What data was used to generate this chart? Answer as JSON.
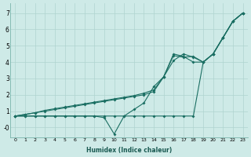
{
  "xlabel": "Humidex (Indice chaleur)",
  "bg_color": "#ceeae7",
  "grid_color": "#afd4d0",
  "line_color": "#1a6e62",
  "line1_x": [
    0,
    1,
    2,
    3,
    4,
    5,
    6,
    7,
    8,
    9,
    10,
    11,
    12,
    13,
    14,
    15,
    16,
    17,
    18,
    19,
    20,
    21,
    22,
    23
  ],
  "line1_y": [
    0.7,
    0.7,
    0.7,
    0.7,
    0.7,
    0.7,
    0.7,
    0.7,
    0.7,
    0.7,
    0.7,
    0.7,
    0.7,
    0.7,
    0.7,
    0.7,
    0.7,
    0.7,
    0.7,
    4.0,
    4.5,
    5.5,
    6.5,
    7.0
  ],
  "line2_x": [
    0,
    1,
    2,
    3,
    4,
    5,
    6,
    7,
    8,
    9,
    10,
    11,
    12,
    13,
    14,
    15,
    16,
    17,
    18,
    19,
    20,
    21,
    22,
    23
  ],
  "line2_y": [
    0.7,
    0.7,
    0.7,
    0.7,
    0.7,
    0.7,
    0.7,
    0.7,
    0.7,
    0.6,
    -0.4,
    0.7,
    1.1,
    1.5,
    2.5,
    3.1,
    4.1,
    4.5,
    4.3,
    4.0,
    4.5,
    5.5,
    6.5,
    7.0
  ],
  "line3_x": [
    0,
    1,
    2,
    3,
    4,
    5,
    6,
    7,
    8,
    9,
    10,
    11,
    12,
    13,
    14,
    15,
    16,
    17,
    18,
    19,
    20,
    21,
    22,
    23
  ],
  "line3_y": [
    0.7,
    0.8,
    0.9,
    1.0,
    1.1,
    1.2,
    1.3,
    1.4,
    1.5,
    1.6,
    1.7,
    1.8,
    1.9,
    2.0,
    2.2,
    3.1,
    4.4,
    4.3,
    4.35,
    4.0,
    4.5,
    5.5,
    6.5,
    7.0
  ],
  "line4_x": [
    0,
    1,
    2,
    3,
    4,
    5,
    6,
    7,
    8,
    9,
    10,
    11,
    12,
    13,
    14,
    15,
    16,
    17,
    18,
    19,
    20,
    21,
    22,
    23
  ],
  "line4_y": [
    0.7,
    0.8,
    0.9,
    1.05,
    1.15,
    1.25,
    1.35,
    1.45,
    1.55,
    1.65,
    1.75,
    1.85,
    1.95,
    2.1,
    2.3,
    3.1,
    4.5,
    4.35,
    4.0,
    4.0,
    4.5,
    5.5,
    6.5,
    7.0
  ],
  "xlim": [
    -0.5,
    23.5
  ],
  "ylim": [
    -0.6,
    7.6
  ],
  "yticks": [
    0,
    1,
    2,
    3,
    4,
    5,
    6,
    7
  ],
  "ytick_labels": [
    "-0",
    "1",
    "2",
    "3",
    "4",
    "5",
    "6",
    "7"
  ],
  "xticks": [
    0,
    1,
    2,
    3,
    4,
    5,
    6,
    7,
    8,
    9,
    10,
    11,
    12,
    13,
    14,
    15,
    16,
    17,
    18,
    19,
    20,
    21,
    22,
    23
  ]
}
